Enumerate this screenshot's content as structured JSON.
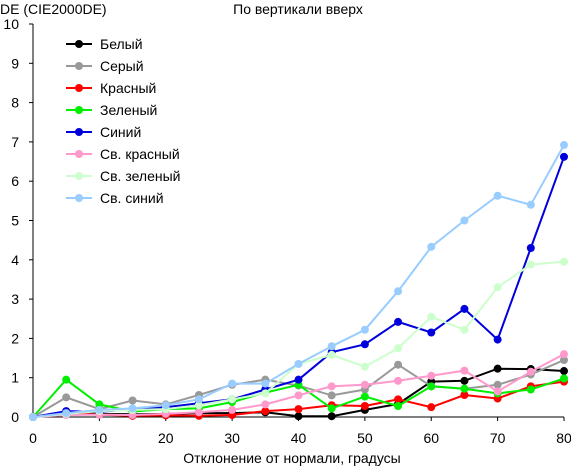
{
  "chart_data": {
    "type": "line",
    "title": "По вертикали вверх",
    "ylabel": "DE (CIE2000DE)",
    "xlabel": "Отклонение от нормали, градусы",
    "xlim": [
      0,
      80
    ],
    "ylim": [
      0,
      10
    ],
    "x_ticks": [
      0,
      10,
      20,
      30,
      40,
      50,
      60,
      70,
      80
    ],
    "y_ticks": [
      0,
      1,
      2,
      3,
      4,
      5,
      6,
      7,
      8,
      9,
      10
    ],
    "x_tick_labels": [
      "0",
      "10",
      "20",
      "30",
      "40",
      "50",
      "60",
      "70",
      "80"
    ],
    "y_tick_labels": [
      "0",
      "1",
      "2",
      "3",
      "4",
      "5",
      "6",
      "7",
      "8",
      "9",
      "10"
    ],
    "grid": false,
    "legend_position": "top-left",
    "x": [
      0,
      5,
      10,
      15,
      20,
      25,
      30,
      35,
      40,
      45,
      50,
      55,
      60,
      65,
      70,
      75,
      80
    ],
    "series": [
      {
        "name": "Белый",
        "color": "#000000",
        "values": [
          0,
          0.12,
          0.08,
          0.07,
          0.08,
          0.1,
          0.1,
          0.12,
          0.02,
          0.02,
          0.18,
          0.33,
          0.9,
          0.92,
          1.23,
          1.22,
          1.17
        ]
      },
      {
        "name": "Серый",
        "color": "#999999",
        "values": [
          0,
          0.5,
          0.2,
          0.42,
          0.32,
          0.56,
          0.82,
          0.95,
          0.8,
          0.55,
          0.7,
          1.33,
          0.78,
          0.72,
          0.82,
          1.08,
          1.45
        ]
      },
      {
        "name": "Красный",
        "color": "#ff0000",
        "values": [
          0,
          0.1,
          0.06,
          0.03,
          0.04,
          0.03,
          0.05,
          0.15,
          0.2,
          0.3,
          0.28,
          0.45,
          0.25,
          0.56,
          0.47,
          0.78,
          0.9
        ]
      },
      {
        "name": "Зеленый",
        "color": "#00ee00",
        "values": [
          0,
          0.95,
          0.32,
          0.14,
          0.2,
          0.22,
          0.38,
          0.62,
          0.82,
          0.22,
          0.52,
          0.28,
          0.78,
          0.72,
          0.6,
          0.7,
          0.98
        ]
      },
      {
        "name": "Синий",
        "color": "#0000dd",
        "values": [
          0,
          0.15,
          0.13,
          0.2,
          0.25,
          0.35,
          0.45,
          0.7,
          0.95,
          1.65,
          1.85,
          2.42,
          2.15,
          2.75,
          1.97,
          4.3,
          6.62
        ]
      },
      {
        "name": "Св. красный",
        "color": "#ff99cc",
        "values": [
          0,
          0.05,
          0.06,
          0.05,
          0.08,
          0.12,
          0.18,
          0.32,
          0.55,
          0.78,
          0.82,
          0.92,
          1.05,
          1.18,
          0.65,
          1.15,
          1.6
        ]
      },
      {
        "name": "Св. зеленый",
        "color": "#ccffcc",
        "values": [
          0,
          0.08,
          0.15,
          0.18,
          0.2,
          0.3,
          0.45,
          0.6,
          1.35,
          1.58,
          1.28,
          1.75,
          2.55,
          2.22,
          3.3,
          3.88,
          3.95
        ]
      },
      {
        "name": "Св. синий",
        "color": "#99ccff",
        "values": [
          0,
          0.1,
          0.18,
          0.22,
          0.3,
          0.45,
          0.85,
          0.85,
          1.35,
          1.8,
          2.22,
          3.2,
          4.33,
          5.0,
          5.63,
          5.4,
          6.92
        ]
      }
    ]
  }
}
